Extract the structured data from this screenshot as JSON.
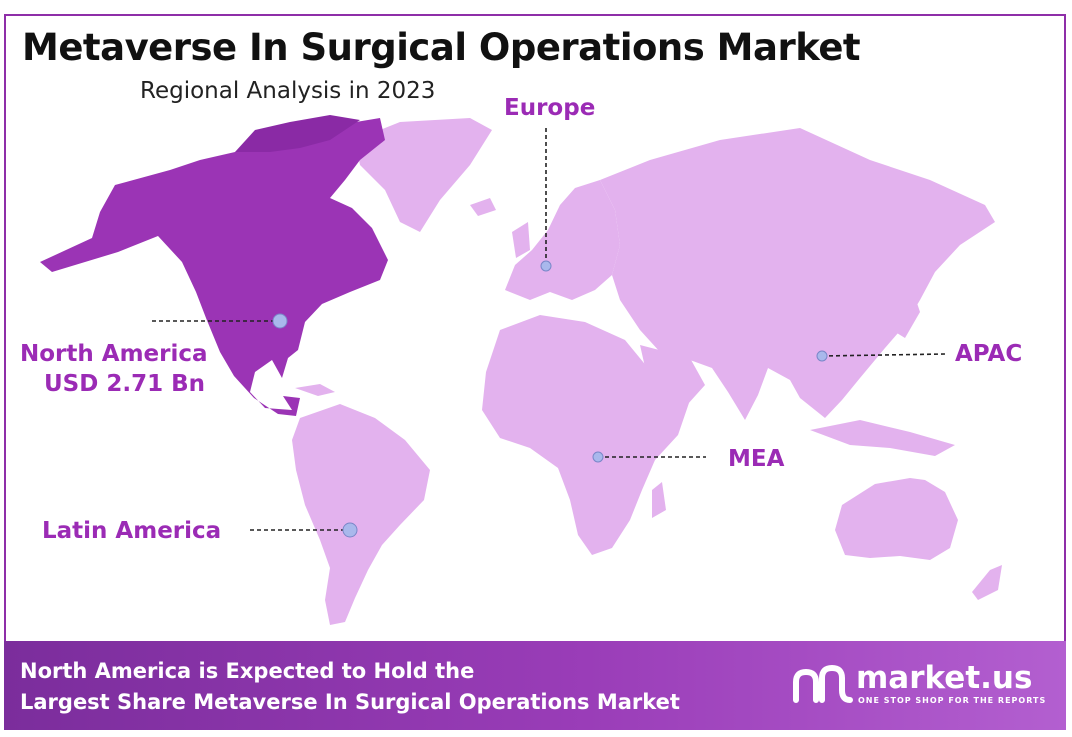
{
  "title": "Metaverse In Surgical Operations Market",
  "subtitle": "Regional Analysis in 2023",
  "regions": {
    "europe": "Europe",
    "north_america_name": "North America",
    "north_america_value": "USD 2.71 Bn",
    "apac": "APAC",
    "mea": "MEA",
    "latin_america": "Latin America"
  },
  "highlighted_region": "North America",
  "footer": {
    "line1": "North America is Expected to Hold the",
    "line2": "Largest Share Metaverse In Surgical Operations Market"
  },
  "brand": {
    "name": "market.us",
    "tagline": "ONE STOP SHOP FOR THE REPORTS"
  },
  "colors": {
    "accent": "#8e2ea8",
    "highlight": "#9b2bb5",
    "land": "#e3b2ee",
    "marker": "#a9b8ec"
  }
}
